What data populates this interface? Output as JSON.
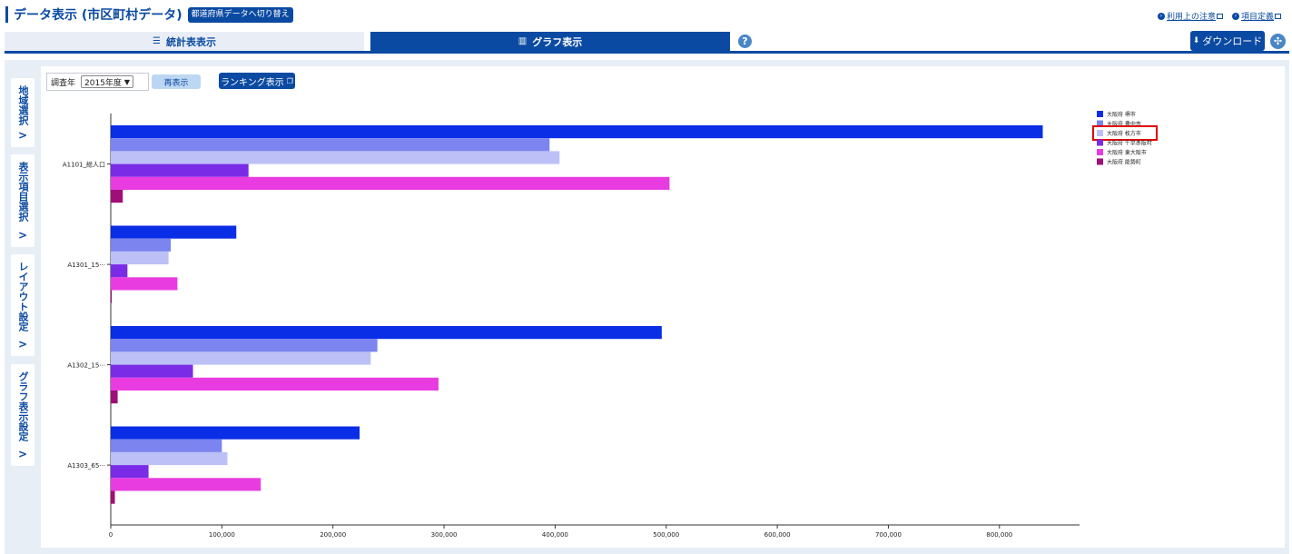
{
  "header": {
    "title": "データ表示 (市区町村データ)",
    "switch_button": "都道府県データへ切り替え",
    "links": [
      "利用上の注意",
      "項目定義"
    ]
  },
  "tabs": {
    "table": "統計表表示",
    "graph": "グラフ表示",
    "download": "ダウンロード"
  },
  "side_tabs": [
    "地域選択",
    "表示項目選択",
    "レイアウト設定",
    "グラフ表示設定"
  ],
  "controls": {
    "year_label": "調査年",
    "year_value": "2015年度",
    "redisplay_button": "再表示",
    "ranking_button": "ランキング表示"
  },
  "colors": {
    "brand": "#0b4aa2",
    "highlight": "#e00000"
  },
  "chart_data": {
    "type": "bar",
    "orientation": "horizontal",
    "categories": [
      "A1101_総人口",
      "A1301_15···",
      "A1302_15···",
      "A1303_65···"
    ],
    "series": [
      {
        "name": "大阪府 堺市",
        "color": "#0a2ee6",
        "values": [
          839000,
          113000,
          496000,
          224000
        ]
      },
      {
        "name": "大阪府 豊中市",
        "color": "#7b84ef",
        "values": [
          395000,
          54000,
          240000,
          100000
        ]
      },
      {
        "name": "大阪府 枚方市",
        "color": "#bcc0f6",
        "values": [
          404000,
          52000,
          234000,
          105000
        ]
      },
      {
        "name": "大阪府 千早赤阪村",
        "color": "#7a2be6",
        "values": [
          124000,
          15000,
          74000,
          34000
        ]
      },
      {
        "name": "大阪府 東大阪市",
        "color": "#e93ce0",
        "values": [
          503000,
          60000,
          295000,
          135000
        ]
      },
      {
        "name": "大阪府 能勢町",
        "color": "#9e0f78",
        "values": [
          10800,
          900,
          6200,
          3700
        ]
      }
    ],
    "xlim": [
      0,
      870000
    ],
    "x_ticks": [
      "0",
      "100,000",
      "200,000",
      "300,000",
      "400,000",
      "500,000",
      "600,000",
      "700,000",
      "800,000"
    ],
    "legend_position": "top-right",
    "highlighted_legend_entry": "大阪府 枚方市"
  }
}
